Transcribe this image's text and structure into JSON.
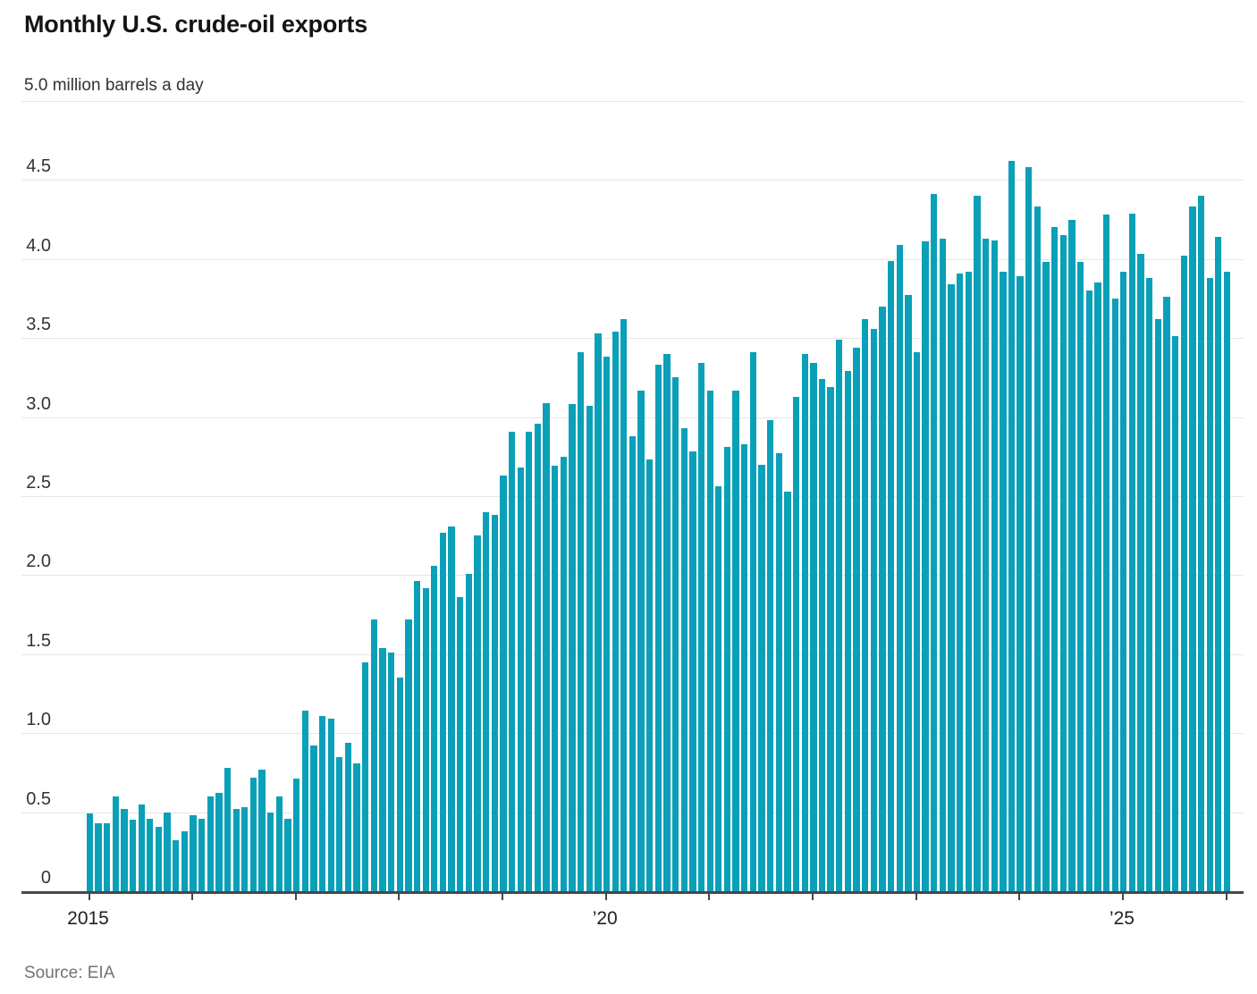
{
  "header": {
    "title": "Monthly U.S. crude-oil exports",
    "unit_label": "5.0 million barrels a day"
  },
  "source": "Source: EIA",
  "colors": {
    "bar": "#0aa0b8",
    "axis": "#474747",
    "gridline": "#e6e6e6",
    "title": "#141414",
    "labels": "#333333",
    "source_text": "#72727a"
  },
  "chart_data": {
    "type": "bar",
    "title": "Monthly U.S. crude-oil exports",
    "ylabel": "million barrels a day",
    "ylim": [
      0,
      5.0
    ],
    "y_ticks": [
      0,
      0.5,
      1.0,
      1.5,
      2.0,
      2.5,
      3.0,
      3.5,
      4.0,
      4.5,
      5.0
    ],
    "grid": true,
    "legend_position": "none",
    "x_axis": {
      "tick_labels": [
        {
          "label": "2015",
          "year_offset": 0
        },
        {
          "label": "’20",
          "year_offset": 5
        },
        {
          "label": "’25",
          "year_offset": 10
        }
      ],
      "minor_tick_year_offsets": [
        0,
        1,
        2,
        3,
        4,
        5,
        6,
        7,
        8,
        9,
        10,
        11
      ]
    },
    "series": [
      {
        "name": "U.S. crude-oil exports",
        "unit": "million barrels a day",
        "frequency": "monthly",
        "years": [
          {
            "year": "2015",
            "values": [
              0.49,
              0.43,
              0.43,
              0.6,
              0.52,
              0.45,
              0.55,
              0.46,
              0.41,
              0.5,
              0.32,
              0.38
            ]
          },
          {
            "year": "2016",
            "values": [
              0.48,
              0.46,
              0.6,
              0.62,
              0.78,
              0.52,
              0.53,
              0.72,
              0.77,
              0.5,
              0.6,
              0.46
            ]
          },
          {
            "year": "2017",
            "values": [
              0.71,
              1.14,
              0.92,
              1.11,
              1.09,
              0.85,
              0.94,
              0.81,
              1.45,
              1.72,
              1.54,
              1.51
            ]
          },
          {
            "year": "2018",
            "values": [
              1.35,
              1.72,
              1.96,
              1.92,
              2.06,
              2.27,
              2.31,
              1.86,
              2.01,
              2.25,
              2.4,
              2.38
            ]
          },
          {
            "year": "2019",
            "values": [
              2.63,
              2.91,
              2.68,
              2.91,
              2.96,
              3.09,
              2.69,
              2.75,
              3.08,
              3.41,
              3.07,
              3.53
            ]
          },
          {
            "year": "2020",
            "values": [
              3.38,
              3.54,
              3.62,
              2.88,
              3.17,
              2.73,
              3.33,
              3.4,
              3.25,
              2.93,
              2.78,
              3.34
            ]
          },
          {
            "year": "2021",
            "values": [
              3.17,
              2.56,
              2.81,
              3.17,
              2.83,
              3.41,
              2.7,
              2.98,
              2.77,
              2.53,
              3.13,
              3.4
            ]
          },
          {
            "year": "2022",
            "values": [
              3.34,
              3.24,
              3.19,
              3.49,
              3.29,
              3.44,
              3.62,
              3.56,
              3.7,
              3.99,
              4.09,
              3.77
            ]
          },
          {
            "year": "2023",
            "values": [
              3.41,
              4.11,
              4.41,
              4.13,
              3.84,
              3.91,
              3.92,
              4.4,
              4.13,
              4.12,
              3.92,
              4.62
            ]
          },
          {
            "year": "2024",
            "values": [
              3.89,
              4.58,
              4.33,
              3.98,
              4.2,
              4.15,
              4.25,
              3.98,
              3.8,
              3.85,
              4.28,
              3.75
            ]
          },
          {
            "year": "2025",
            "values": [
              3.92,
              4.29,
              4.03,
              3.88,
              3.62,
              3.76,
              3.51,
              4.02,
              4.33,
              4.4,
              3.88,
              4.14
            ]
          },
          {
            "year": "2026",
            "values": [
              3.92
            ]
          }
        ]
      }
    ]
  }
}
